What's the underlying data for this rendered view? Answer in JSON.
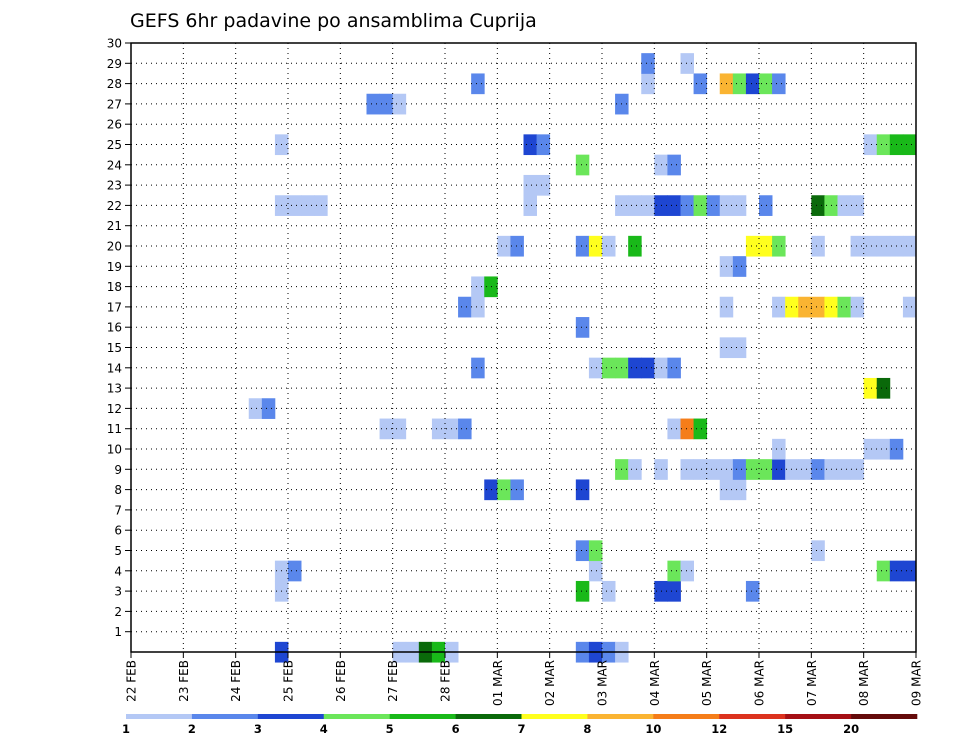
{
  "chart_data": {
    "type": "heatmap",
    "title": "GEFS 6hr padavine po ansamblima Cuprija",
    "xlabel": "",
    "ylabel": "",
    "x_ticks": [
      "22 FEB",
      "23 FEB",
      "24 FEB",
      "25 FEB",
      "26 FEB",
      "27 FEB",
      "28 FEB",
      "01 MAR",
      "02 MAR",
      "03 MAR",
      "04 MAR",
      "05 MAR",
      "06 MAR",
      "07 MAR",
      "08 MAR",
      "09 MAR"
    ],
    "y_ticks": [
      "1",
      "2",
      "3",
      "4",
      "5",
      "6",
      "7",
      "8",
      "9",
      "10",
      "11",
      "12",
      "13",
      "14",
      "15",
      "16",
      "17",
      "18",
      "19",
      "20",
      "21",
      "22",
      "23",
      "24",
      "25",
      "26",
      "27",
      "28",
      "29",
      "30"
    ],
    "x_range_steps": [
      0,
      60
    ],
    "steps_per_day": 4,
    "members": 31,
    "grid": "dotted",
    "colorbar": {
      "labels": [
        "1",
        "2",
        "3",
        "4",
        "5",
        "6",
        "7",
        "8",
        "10",
        "12",
        "15",
        "20"
      ],
      "colors": [
        "#b4c8f5",
        "#5a87eb",
        "#1e46d2",
        "#6be65a",
        "#19b919",
        "#0a690a",
        "#ffff1e",
        "#fab432",
        "#f57d19",
        "#dc321e",
        "#a50f14",
        "#640a0a"
      ]
    },
    "cells": [
      {
        "m": 0,
        "s": 11,
        "c": 3
      },
      {
        "m": 0,
        "s": 20,
        "c": 1
      },
      {
        "m": 0,
        "s": 21,
        "c": 1
      },
      {
        "m": 0,
        "s": 22,
        "c": 6
      },
      {
        "m": 0,
        "s": 23,
        "c": 5
      },
      {
        "m": 0,
        "s": 24,
        "c": 1
      },
      {
        "m": 0,
        "s": 34,
        "c": 2
      },
      {
        "m": 0,
        "s": 35,
        "c": 3
      },
      {
        "m": 0,
        "s": 36,
        "c": 2
      },
      {
        "m": 0,
        "s": 37,
        "c": 1
      },
      {
        "m": 3,
        "s": 11,
        "c": 1
      },
      {
        "m": 3,
        "s": 34,
        "c": 5
      },
      {
        "m": 3,
        "s": 36,
        "c": 1
      },
      {
        "m": 3,
        "s": 40,
        "c": 3
      },
      {
        "m": 3,
        "s": 41,
        "c": 3
      },
      {
        "m": 3,
        "s": 47,
        "c": 2
      },
      {
        "m": 4,
        "s": 11,
        "c": 1
      },
      {
        "m": 4,
        "s": 12,
        "c": 2
      },
      {
        "m": 4,
        "s": 35,
        "c": 1
      },
      {
        "m": 4,
        "s": 41,
        "c": 4
      },
      {
        "m": 4,
        "s": 42,
        "c": 1
      },
      {
        "m": 4,
        "s": 57,
        "c": 4
      },
      {
        "m": 4,
        "s": 58,
        "c": 3
      },
      {
        "m": 4,
        "s": 59,
        "c": 3
      },
      {
        "m": 5,
        "s": 34,
        "c": 2
      },
      {
        "m": 5,
        "s": 35,
        "c": 4
      },
      {
        "m": 5,
        "s": 52,
        "c": 1
      },
      {
        "m": 8,
        "s": 27,
        "c": 3
      },
      {
        "m": 8,
        "s": 28,
        "c": 4
      },
      {
        "m": 8,
        "s": 29,
        "c": 2
      },
      {
        "m": 8,
        "s": 34,
        "c": 3
      },
      {
        "m": 8,
        "s": 45,
        "c": 1
      },
      {
        "m": 8,
        "s": 46,
        "c": 1
      },
      {
        "m": 9,
        "s": 37,
        "c": 4
      },
      {
        "m": 9,
        "s": 38,
        "c": 1
      },
      {
        "m": 9,
        "s": 40,
        "c": 1
      },
      {
        "m": 9,
        "s": 42,
        "c": 1
      },
      {
        "m": 9,
        "s": 43,
        "c": 1
      },
      {
        "m": 9,
        "s": 44,
        "c": 1
      },
      {
        "m": 9,
        "s": 45,
        "c": 1
      },
      {
        "m": 9,
        "s": 46,
        "c": 2
      },
      {
        "m": 9,
        "s": 47,
        "c": 4
      },
      {
        "m": 9,
        "s": 48,
        "c": 4
      },
      {
        "m": 9,
        "s": 49,
        "c": 3
      },
      {
        "m": 9,
        "s": 50,
        "c": 1
      },
      {
        "m": 9,
        "s": 51,
        "c": 1
      },
      {
        "m": 9,
        "s": 52,
        "c": 2
      },
      {
        "m": 9,
        "s": 53,
        "c": 1
      },
      {
        "m": 9,
        "s": 54,
        "c": 1
      },
      {
        "m": 9,
        "s": 55,
        "c": 1
      },
      {
        "m": 10,
        "s": 49,
        "c": 1
      },
      {
        "m": 10,
        "s": 56,
        "c": 1
      },
      {
        "m": 10,
        "s": 57,
        "c": 1
      },
      {
        "m": 10,
        "s": 58,
        "c": 2
      },
      {
        "m": 11,
        "s": 19,
        "c": 1
      },
      {
        "m": 11,
        "s": 20,
        "c": 1
      },
      {
        "m": 11,
        "s": 23,
        "c": 1
      },
      {
        "m": 11,
        "s": 24,
        "c": 1
      },
      {
        "m": 11,
        "s": 25,
        "c": 2
      },
      {
        "m": 11,
        "s": 41,
        "c": 1
      },
      {
        "m": 11,
        "s": 42,
        "c": 9
      },
      {
        "m": 11,
        "s": 43,
        "c": 5
      },
      {
        "m": 12,
        "s": 9,
        "c": 1
      },
      {
        "m": 12,
        "s": 10,
        "c": 2
      },
      {
        "m": 13,
        "s": 56,
        "c": 7
      },
      {
        "m": 13,
        "s": 57,
        "c": 6
      },
      {
        "m": 14,
        "s": 26,
        "c": 2
      },
      {
        "m": 14,
        "s": 35,
        "c": 1
      },
      {
        "m": 14,
        "s": 36,
        "c": 4
      },
      {
        "m": 14,
        "s": 37,
        "c": 4
      },
      {
        "m": 14,
        "s": 38,
        "c": 3
      },
      {
        "m": 14,
        "s": 39,
        "c": 3
      },
      {
        "m": 14,
        "s": 40,
        "c": 1
      },
      {
        "m": 14,
        "s": 41,
        "c": 2
      },
      {
        "m": 15,
        "s": 45,
        "c": 1
      },
      {
        "m": 15,
        "s": 46,
        "c": 1
      },
      {
        "m": 16,
        "s": 34,
        "c": 2
      },
      {
        "m": 17,
        "s": 25,
        "c": 2
      },
      {
        "m": 17,
        "s": 26,
        "c": 1
      },
      {
        "m": 17,
        "s": 45,
        "c": 1
      },
      {
        "m": 17,
        "s": 49,
        "c": 1
      },
      {
        "m": 17,
        "s": 50,
        "c": 7
      },
      {
        "m": 17,
        "s": 51,
        "c": 8
      },
      {
        "m": 17,
        "s": 52,
        "c": 8
      },
      {
        "m": 17,
        "s": 53,
        "c": 7
      },
      {
        "m": 17,
        "s": 54,
        "c": 4
      },
      {
        "m": 17,
        "s": 55,
        "c": 1
      },
      {
        "m": 17,
        "s": 59,
        "c": 1
      },
      {
        "m": 18,
        "s": 26,
        "c": 1
      },
      {
        "m": 18,
        "s": 27,
        "c": 5
      },
      {
        "m": 19,
        "s": 45,
        "c": 1
      },
      {
        "m": 19,
        "s": 46,
        "c": 2
      },
      {
        "m": 20,
        "s": 28,
        "c": 1
      },
      {
        "m": 20,
        "s": 29,
        "c": 2
      },
      {
        "m": 20,
        "s": 34,
        "c": 2
      },
      {
        "m": 20,
        "s": 35,
        "c": 7
      },
      {
        "m": 20,
        "s": 36,
        "c": 1
      },
      {
        "m": 20,
        "s": 38,
        "c": 5
      },
      {
        "m": 20,
        "s": 47,
        "c": 7
      },
      {
        "m": 20,
        "s": 48,
        "c": 7
      },
      {
        "m": 20,
        "s": 49,
        "c": 4
      },
      {
        "m": 20,
        "s": 52,
        "c": 1
      },
      {
        "m": 20,
        "s": 55,
        "c": 1
      },
      {
        "m": 20,
        "s": 56,
        "c": 1
      },
      {
        "m": 20,
        "s": 57,
        "c": 1
      },
      {
        "m": 20,
        "s": 58,
        "c": 1
      },
      {
        "m": 20,
        "s": 59,
        "c": 1
      },
      {
        "m": 22,
        "s": 11,
        "c": 1
      },
      {
        "m": 22,
        "s": 12,
        "c": 1
      },
      {
        "m": 22,
        "s": 13,
        "c": 1
      },
      {
        "m": 22,
        "s": 14,
        "c": 1
      },
      {
        "m": 22,
        "s": 30,
        "c": 1
      },
      {
        "m": 22,
        "s": 37,
        "c": 1
      },
      {
        "m": 22,
        "s": 38,
        "c": 1
      },
      {
        "m": 22,
        "s": 39,
        "c": 1
      },
      {
        "m": 22,
        "s": 40,
        "c": 3
      },
      {
        "m": 22,
        "s": 41,
        "c": 3
      },
      {
        "m": 22,
        "s": 42,
        "c": 2
      },
      {
        "m": 22,
        "s": 43,
        "c": 4
      },
      {
        "m": 22,
        "s": 44,
        "c": 2
      },
      {
        "m": 22,
        "s": 45,
        "c": 1
      },
      {
        "m": 22,
        "s": 46,
        "c": 1
      },
      {
        "m": 22,
        "s": 48,
        "c": 2
      },
      {
        "m": 22,
        "s": 52,
        "c": 6
      },
      {
        "m": 22,
        "s": 53,
        "c": 4
      },
      {
        "m": 22,
        "s": 54,
        "c": 1
      },
      {
        "m": 22,
        "s": 55,
        "c": 1
      },
      {
        "m": 23,
        "s": 30,
        "c": 1
      },
      {
        "m": 23,
        "s": 31,
        "c": 1
      },
      {
        "m": 24,
        "s": 34,
        "c": 4
      },
      {
        "m": 24,
        "s": 40,
        "c": 1
      },
      {
        "m": 24,
        "s": 41,
        "c": 2
      },
      {
        "m": 25,
        "s": 11,
        "c": 1
      },
      {
        "m": 25,
        "s": 30,
        "c": 3
      },
      {
        "m": 25,
        "s": 31,
        "c": 2
      },
      {
        "m": 25,
        "s": 56,
        "c": 1
      },
      {
        "m": 25,
        "s": 57,
        "c": 4
      },
      {
        "m": 25,
        "s": 58,
        "c": 5
      },
      {
        "m": 25,
        "s": 59,
        "c": 5
      },
      {
        "m": 27,
        "s": 18,
        "c": 2
      },
      {
        "m": 27,
        "s": 19,
        "c": 2
      },
      {
        "m": 27,
        "s": 20,
        "c": 1
      },
      {
        "m": 27,
        "s": 37,
        "c": 2
      },
      {
        "m": 28,
        "s": 26,
        "c": 2
      },
      {
        "m": 28,
        "s": 39,
        "c": 1
      },
      {
        "m": 28,
        "s": 43,
        "c": 2
      },
      {
        "m": 28,
        "s": 45,
        "c": 8
      },
      {
        "m": 28,
        "s": 46,
        "c": 4
      },
      {
        "m": 28,
        "s": 47,
        "c": 3
      },
      {
        "m": 28,
        "s": 48,
        "c": 4
      },
      {
        "m": 28,
        "s": 49,
        "c": 2
      },
      {
        "m": 29,
        "s": 39,
        "c": 2
      },
      {
        "m": 29,
        "s": 42,
        "c": 1
      }
    ]
  }
}
